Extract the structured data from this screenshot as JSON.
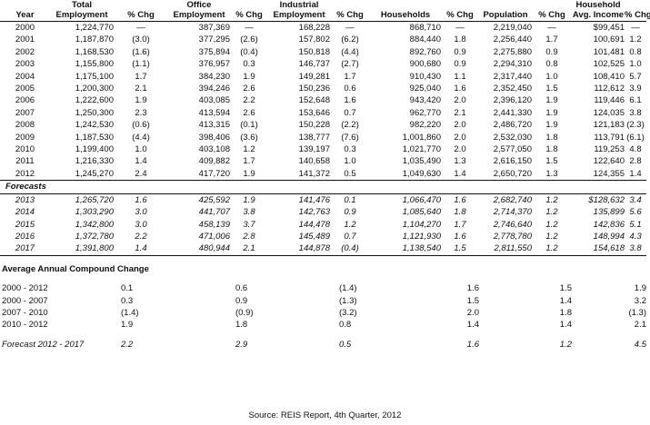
{
  "headers": {
    "year": "Year",
    "total_employment": [
      "Total",
      "Employment"
    ],
    "office_employment": [
      "Office",
      "Employment"
    ],
    "industrial_employment": [
      "Industrial",
      "Employment"
    ],
    "households": "Households",
    "population": "Population",
    "household_income": [
      "Household",
      "Avg. Income"
    ],
    "pct_chg": "% Chg"
  },
  "historical": [
    {
      "year": "2000",
      "total": "1,224,770",
      "total_chg": "—",
      "office": "387,369",
      "office_chg": "—",
      "ind": "168,228",
      "ind_chg": "—",
      "hh": "868,710",
      "hh_chg": "—",
      "pop": "2,219,040",
      "pop_chg": "—",
      "inc": "$99,451",
      "inc_chg": "—"
    },
    {
      "year": "2001",
      "total": "1,187,870",
      "total_chg": "(3.0)",
      "office": "377,295",
      "office_chg": "(2.6)",
      "ind": "157,802",
      "ind_chg": "(6.2)",
      "hh": "884,440",
      "hh_chg": "1.8",
      "pop": "2,256,440",
      "pop_chg": "1.7",
      "inc": "100,691",
      "inc_chg": "1.2"
    },
    {
      "year": "2002",
      "total": "1,168,530",
      "total_chg": "(1.6)",
      "office": "375,894",
      "office_chg": "(0.4)",
      "ind": "150,818",
      "ind_chg": "(4.4)",
      "hh": "892,760",
      "hh_chg": "0.9",
      "pop": "2,275,880",
      "pop_chg": "0.9",
      "inc": "101,481",
      "inc_chg": "0.8"
    },
    {
      "year": "2003",
      "total": "1,155,800",
      "total_chg": "(1.1)",
      "office": "376,957",
      "office_chg": "0.3",
      "ind": "146,737",
      "ind_chg": "(2.7)",
      "hh": "900,680",
      "hh_chg": "0.9",
      "pop": "2,294,310",
      "pop_chg": "0.8",
      "inc": "102,525",
      "inc_chg": "1.0"
    },
    {
      "year": "2004",
      "total": "1,175,100",
      "total_chg": "1.7",
      "office": "384,230",
      "office_chg": "1.9",
      "ind": "149,281",
      "ind_chg": "1.7",
      "hh": "910,430",
      "hh_chg": "1.1",
      "pop": "2,317,440",
      "pop_chg": "1.0",
      "inc": "108,410",
      "inc_chg": "5.7"
    },
    {
      "year": "2005",
      "total": "1,200,300",
      "total_chg": "2.1",
      "office": "394,246",
      "office_chg": "2.6",
      "ind": "150,236",
      "ind_chg": "0.6",
      "hh": "925,040",
      "hh_chg": "1.6",
      "pop": "2,352,450",
      "pop_chg": "1.5",
      "inc": "112,612",
      "inc_chg": "3.9"
    },
    {
      "year": "2006",
      "total": "1,222,600",
      "total_chg": "1.9",
      "office": "403,085",
      "office_chg": "2.2",
      "ind": "152,648",
      "ind_chg": "1.6",
      "hh": "943,420",
      "hh_chg": "2.0",
      "pop": "2,396,120",
      "pop_chg": "1.9",
      "inc": "119,446",
      "inc_chg": "6.1"
    },
    {
      "year": "2007",
      "total": "1,250,300",
      "total_chg": "2.3",
      "office": "413,594",
      "office_chg": "2.6",
      "ind": "153,646",
      "ind_chg": "0.7",
      "hh": "962,770",
      "hh_chg": "2.1",
      "pop": "2,441,330",
      "pop_chg": "1.9",
      "inc": "124,035",
      "inc_chg": "3.8"
    },
    {
      "year": "2008",
      "total": "1,242,530",
      "total_chg": "(0.6)",
      "office": "413,315",
      "office_chg": "(0.1)",
      "ind": "150,228",
      "ind_chg": "(2.2)",
      "hh": "982,220",
      "hh_chg": "2.0",
      "pop": "2,486,720",
      "pop_chg": "1.9",
      "inc": "121,183",
      "inc_chg": "(2.3)"
    },
    {
      "year": "2009",
      "total": "1,187,530",
      "total_chg": "(4.4)",
      "office": "398,406",
      "office_chg": "(3.6)",
      "ind": "138,777",
      "ind_chg": "(7.6)",
      "hh": "1,001,860",
      "hh_chg": "2.0",
      "pop": "2,532,030",
      "pop_chg": "1.8",
      "inc": "113,791",
      "inc_chg": "(6.1)"
    },
    {
      "year": "2010",
      "total": "1,199,400",
      "total_chg": "1.0",
      "office": "403,108",
      "office_chg": "1.2",
      "ind": "139,197",
      "ind_chg": "0.3",
      "hh": "1,021,770",
      "hh_chg": "2.0",
      "pop": "2,577,050",
      "pop_chg": "1.8",
      "inc": "119,253",
      "inc_chg": "4.8"
    },
    {
      "year": "2011",
      "total": "1,216,330",
      "total_chg": "1.4",
      "office": "409,882",
      "office_chg": "1.7",
      "ind": "140,658",
      "ind_chg": "1.0",
      "hh": "1,035,490",
      "hh_chg": "1.3",
      "pop": "2,616,150",
      "pop_chg": "1.5",
      "inc": "122,640",
      "inc_chg": "2.8"
    },
    {
      "year": "2012",
      "total": "1,245,270",
      "total_chg": "2.4",
      "office": "417,720",
      "office_chg": "1.9",
      "ind": "141,372",
      "ind_chg": "0.5",
      "hh": "1,049,630",
      "hh_chg": "1.4",
      "pop": "2,650,720",
      "pop_chg": "1.3",
      "inc": "124,355",
      "inc_chg": "1.4"
    }
  ],
  "forecasts_label": "Forecasts",
  "forecasts": [
    {
      "year": "2013",
      "total": "1,265,720",
      "total_chg": "1.6",
      "office": "425,592",
      "office_chg": "1.9",
      "ind": "141,476",
      "ind_chg": "0.1",
      "hh": "1,066,470",
      "hh_chg": "1.6",
      "pop": "2,682,740",
      "pop_chg": "1.2",
      "inc": "$128,632",
      "inc_chg": "3.4"
    },
    {
      "year": "2014",
      "total": "1,303,290",
      "total_chg": "3.0",
      "office": "441,707",
      "office_chg": "3.8",
      "ind": "142,763",
      "ind_chg": "0.9",
      "hh": "1,085,640",
      "hh_chg": "1.8",
      "pop": "2,714,370",
      "pop_chg": "1.2",
      "inc": "135,899",
      "inc_chg": "5.6"
    },
    {
      "year": "2015",
      "total": "1,342,800",
      "total_chg": "3.0",
      "office": "458,139",
      "office_chg": "3.7",
      "ind": "144,478",
      "ind_chg": "1.2",
      "hh": "1,104,270",
      "hh_chg": "1.7",
      "pop": "2,746,640",
      "pop_chg": "1.2",
      "inc": "142,836",
      "inc_chg": "5.1"
    },
    {
      "year": "2016",
      "total": "1,372,780",
      "total_chg": "2.2",
      "office": "471,006",
      "office_chg": "2.8",
      "ind": "145,489",
      "ind_chg": "0.7",
      "hh": "1,121,930",
      "hh_chg": "1.6",
      "pop": "2,778,780",
      "pop_chg": "1.2",
      "inc": "148,994",
      "inc_chg": "4.3"
    },
    {
      "year": "2017",
      "total": "1,391,800",
      "total_chg": "1.4",
      "office": "480,944",
      "office_chg": "2.1",
      "ind": "144,878",
      "ind_chg": "(0.4)",
      "hh": "1,138,540",
      "hh_chg": "1.5",
      "pop": "2,811,550",
      "pop_chg": "1.2",
      "inc": "154,618",
      "inc_chg": "3.8"
    }
  ],
  "cagr_label": "Average Annual Compound Change",
  "cagr": [
    {
      "period": "2000 - 2012",
      "total": "0.1",
      "office": "0.6",
      "ind": "(1.4)",
      "hh": "1.6",
      "pop": "1.5",
      "inc": "1.9"
    },
    {
      "period": "2000 - 2007",
      "total": "0.3",
      "office": "0.9",
      "ind": "(1.3)",
      "hh": "1.5",
      "pop": "1.4",
      "inc": "3.2"
    },
    {
      "period": "2007 - 2010",
      "total": "(1.4)",
      "office": "(0.9)",
      "ind": "(3.2)",
      "hh": "2.0",
      "pop": "1.8",
      "inc": "(1.3)"
    },
    {
      "period": "2010 - 2012",
      "total": "1.9",
      "office": "1.8",
      "ind": "0.8",
      "hh": "1.4",
      "pop": "1.4",
      "inc": "2.1"
    }
  ],
  "forecast_cagr": {
    "period": "Forecast 2012 - 2017",
    "total": "2.2",
    "office": "2.9",
    "ind": "0.5",
    "hh": "1.6",
    "pop": "1.2",
    "inc": "4.5"
  },
  "pct_sign": "%",
  "source": "Source: REIS Report, 4th Quarter, 2012"
}
